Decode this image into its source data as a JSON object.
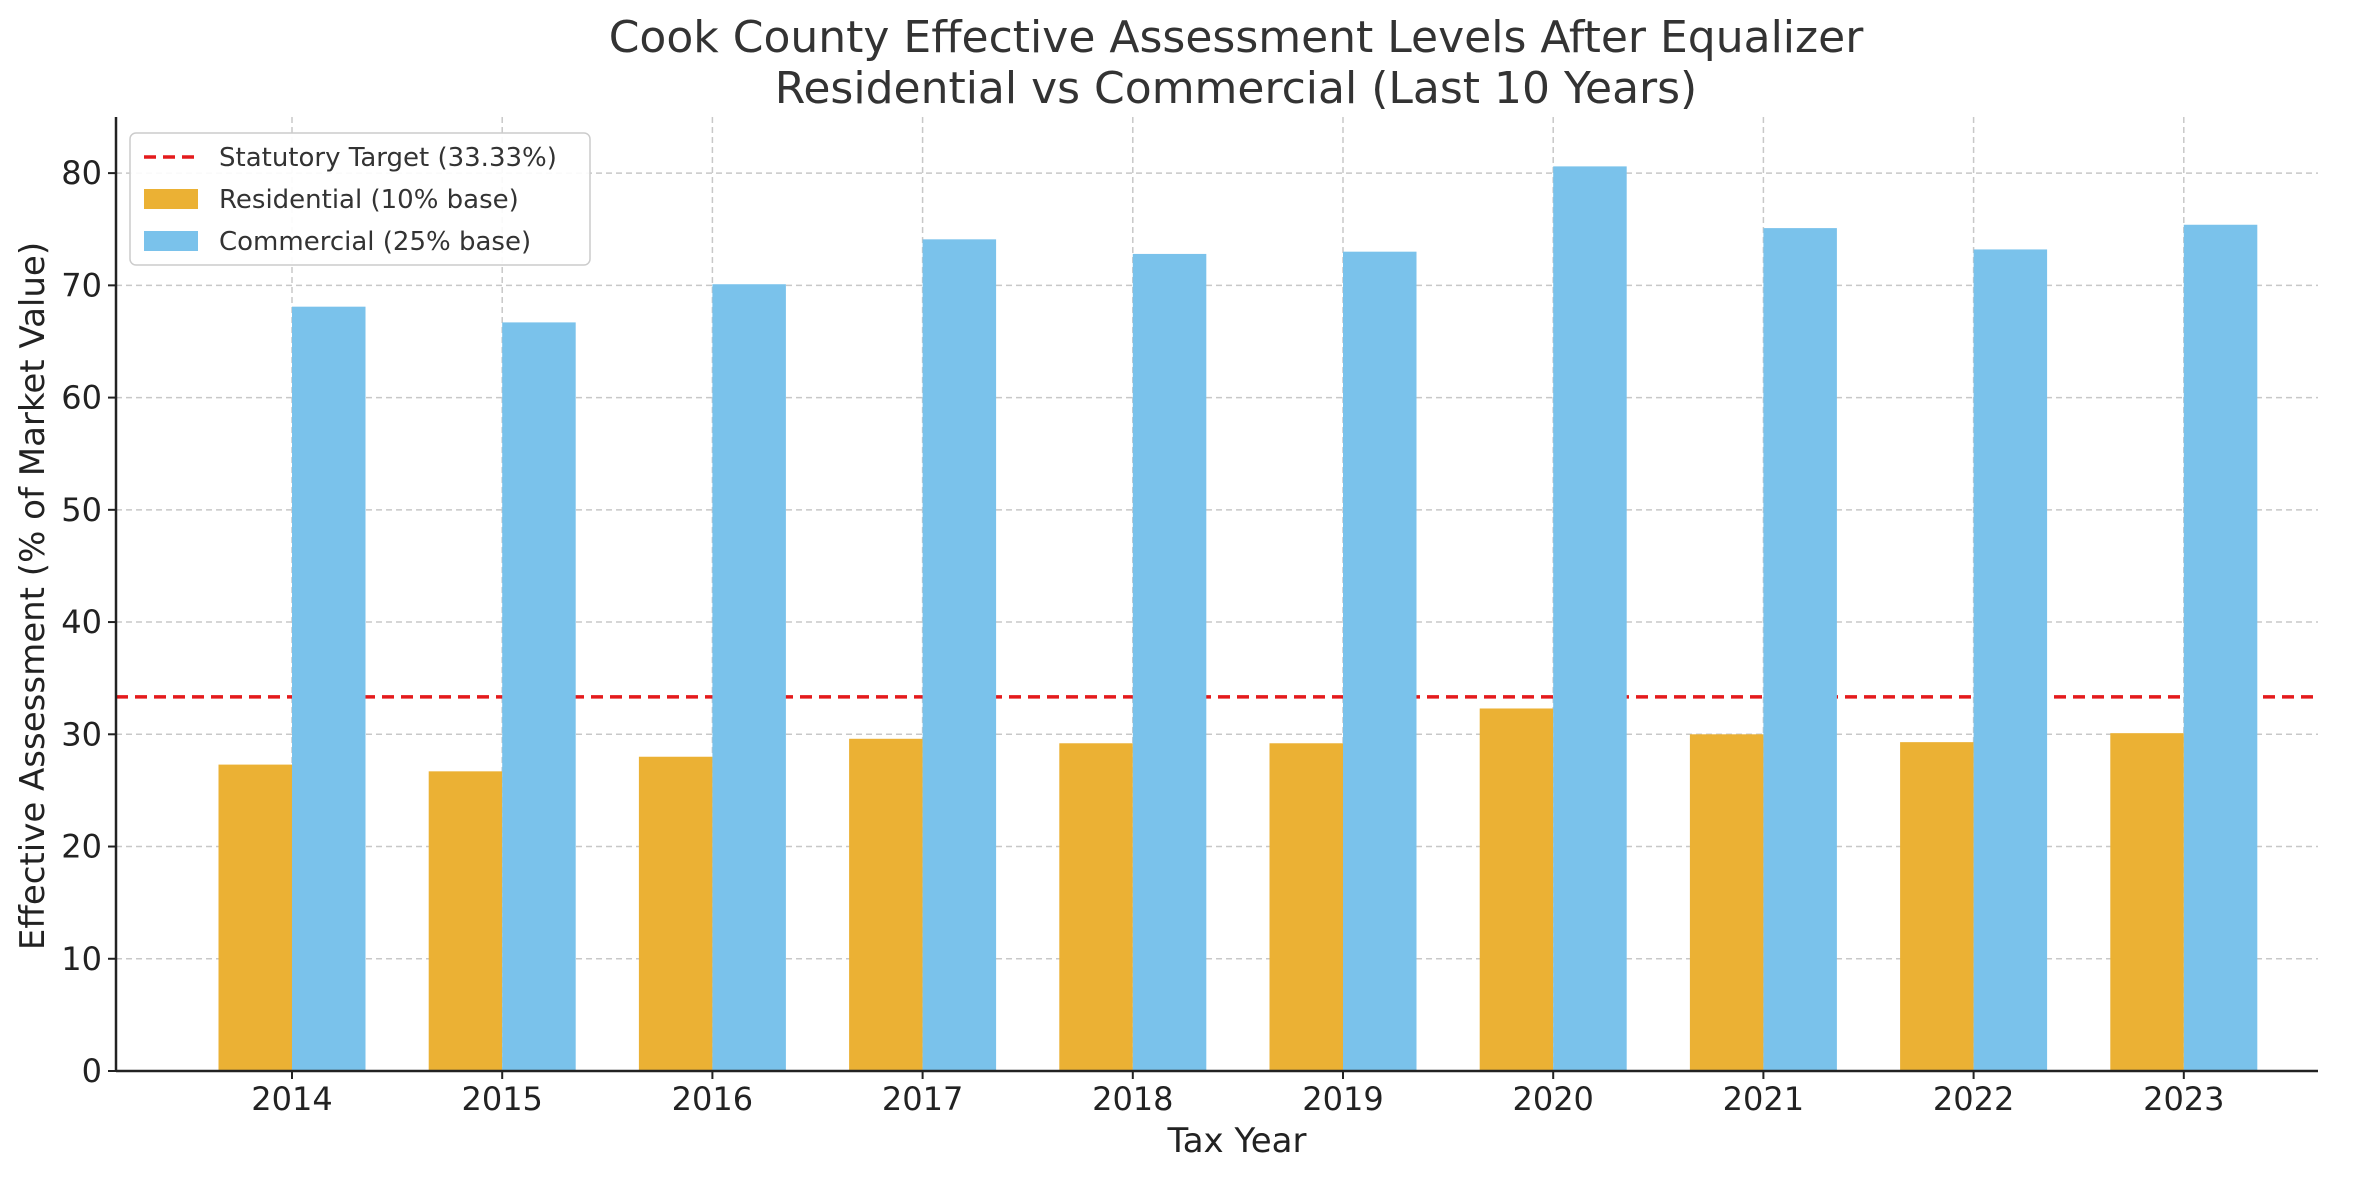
{
  "chart_data": {
    "type": "bar",
    "title_line1": "Cook County Effective Assessment Levels After Equalizer",
    "title_line2": "Residential vs Commercial (Last 10 Years)",
    "xlabel": "Tax Year",
    "ylabel": "Effective Assessment (% of Market Value)",
    "categories": [
      "2014",
      "2015",
      "2016",
      "2017",
      "2018",
      "2019",
      "2020",
      "2021",
      "2022",
      "2023"
    ],
    "series": [
      {
        "name": "Residential (10% base)",
        "color": "#EBB134",
        "values": [
          27.3,
          26.7,
          28.0,
          29.6,
          29.2,
          29.2,
          32.3,
          30.0,
          29.3,
          30.1
        ]
      },
      {
        "name": "Commercial (25% base)",
        "color": "#7AC2EB",
        "values": [
          68.1,
          66.7,
          70.1,
          74.1,
          72.8,
          73.0,
          80.6,
          75.1,
          73.2,
          75.4
        ]
      }
    ],
    "reference_line": {
      "name": "Statutory Target (33.33%)",
      "value": 33.33,
      "color": "#E41A1C",
      "style": "dashed"
    },
    "ylim": [
      0,
      85
    ],
    "yticks": [
      "0",
      "10",
      "20",
      "30",
      "40",
      "50",
      "60",
      "70",
      "80"
    ],
    "grid": true,
    "legend_position": "top-left"
  }
}
